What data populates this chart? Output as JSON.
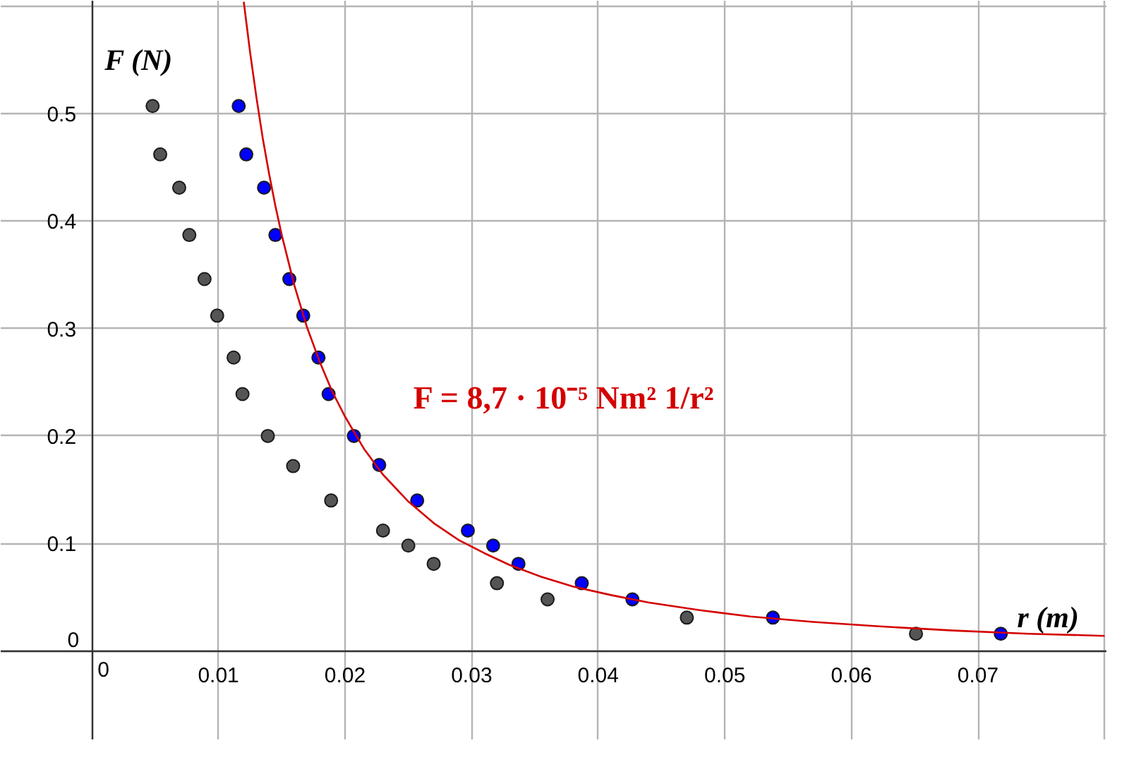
{
  "chart_data": {
    "type": "scatter",
    "xlabel": "r (m)",
    "ylabel": "F (N)",
    "xlim": [
      -0.0072,
      0.0802
    ],
    "ylim": [
      -0.083,
      0.605
    ],
    "xticks": [
      0,
      0.01,
      0.02,
      0.03,
      0.04,
      0.05,
      0.06,
      0.07,
      {
        "value": 0.08,
        "label": null
      }
    ],
    "yticks": [
      0,
      0.1,
      0.2,
      0.3,
      0.4,
      0.5,
      {
        "value": 0.6,
        "label": null
      }
    ],
    "grid": true,
    "series": [
      {
        "color": "#555555",
        "marker": "circle",
        "x": [
          0.0048,
          0.0054,
          0.0069,
          0.0077,
          0.0089,
          0.0099,
          0.0112,
          0.0119,
          0.0139,
          0.0159,
          0.0189,
          0.023,
          0.025,
          0.027,
          0.032,
          0.036,
          0.047,
          0.0651
        ],
        "values": [
          0.507,
          0.462,
          0.431,
          0.387,
          0.346,
          0.312,
          0.273,
          0.239,
          0.2,
          0.172,
          0.14,
          0.112,
          0.098,
          0.081,
          0.063,
          0.048,
          0.031,
          0.016
        ]
      },
      {
        "color": "#0000ff",
        "marker": "circle",
        "x": [
          0.0116,
          0.0122,
          0.0136,
          0.0145,
          0.0156,
          0.0167,
          0.0179,
          0.0187,
          0.0207,
          0.0227,
          0.0257,
          0.0297,
          0.0317,
          0.0337,
          0.0387,
          0.0427,
          0.0538,
          0.0718
        ],
        "values": [
          0.507,
          0.462,
          0.431,
          0.387,
          0.346,
          0.312,
          0.273,
          0.239,
          0.2,
          0.173,
          0.14,
          0.112,
          0.098,
          0.081,
          0.063,
          0.048,
          0.031,
          0.016
        ]
      },
      {
        "type": "line",
        "name": "F = 8,7 · 10⁻⁵ Nm² 1/r²",
        "color": "#d40000",
        "marker": "none",
        "line_style": "solid",
        "x": [
          0.012,
          0.0125,
          0.013,
          0.0135,
          0.014,
          0.0145,
          0.015,
          0.016,
          0.017,
          0.018,
          0.019,
          0.02,
          0.0215,
          0.023,
          0.025,
          0.027,
          0.029,
          0.031,
          0.033,
          0.0355,
          0.038,
          0.041,
          0.044,
          0.048,
          0.052,
          0.057,
          0.062,
          0.068,
          0.074,
          0.08
        ],
        "values": [
          0.604,
          0.557,
          0.515,
          0.477,
          0.444,
          0.414,
          0.387,
          0.34,
          0.301,
          0.269,
          0.241,
          0.218,
          0.188,
          0.164,
          0.139,
          0.119,
          0.103,
          0.091,
          0.08,
          0.069,
          0.06,
          0.052,
          0.045,
          0.038,
          0.032,
          0.027,
          0.023,
          0.019,
          0.016,
          0.014
        ]
      }
    ]
  }
}
